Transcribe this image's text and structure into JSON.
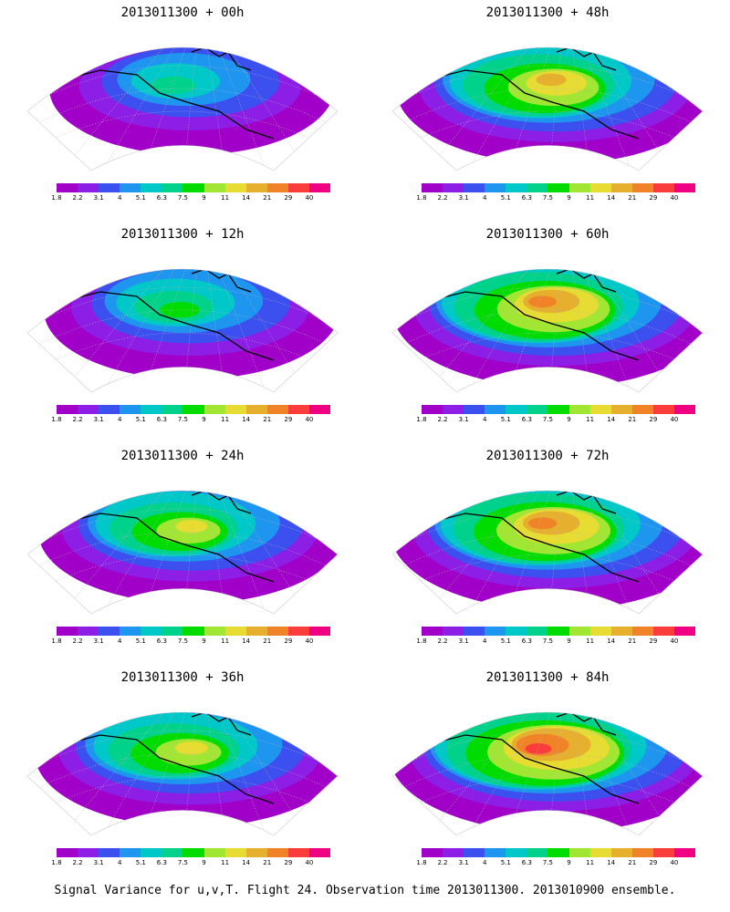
{
  "panels": [
    {
      "title": "2013011300 + 00h",
      "intensity": 0.15
    },
    {
      "title": "2013011300 + 48h",
      "intensity": 0.65
    },
    {
      "title": "2013011300 + 12h",
      "intensity": 0.3
    },
    {
      "title": "2013011300 + 60h",
      "intensity": 0.75
    },
    {
      "title": "2013011300 + 24h",
      "intensity": 0.45
    },
    {
      "title": "2013011300 + 72h",
      "intensity": 0.8
    },
    {
      "title": "2013011300 + 36h",
      "intensity": 0.55
    },
    {
      "title": "2013011300 + 84h",
      "intensity": 0.85
    }
  ],
  "colorbar": {
    "colors": [
      "#a000c8",
      "#8c1ee6",
      "#3c50f0",
      "#1e96f0",
      "#00c8c8",
      "#00d28c",
      "#00dc00",
      "#a0e632",
      "#e6dc32",
      "#e6af2d",
      "#f08228",
      "#fa3c3c",
      "#f00082"
    ],
    "labels": [
      "1.8",
      "2.2",
      "3.1",
      "4",
      "5.1",
      "6.3",
      "7.5",
      "9",
      "11",
      "14",
      "21",
      "29",
      "40"
    ]
  },
  "caption": "Signal Variance for u,v,T. Flight 24. Observation time 2013011300. 2013010900 ensemble."
}
